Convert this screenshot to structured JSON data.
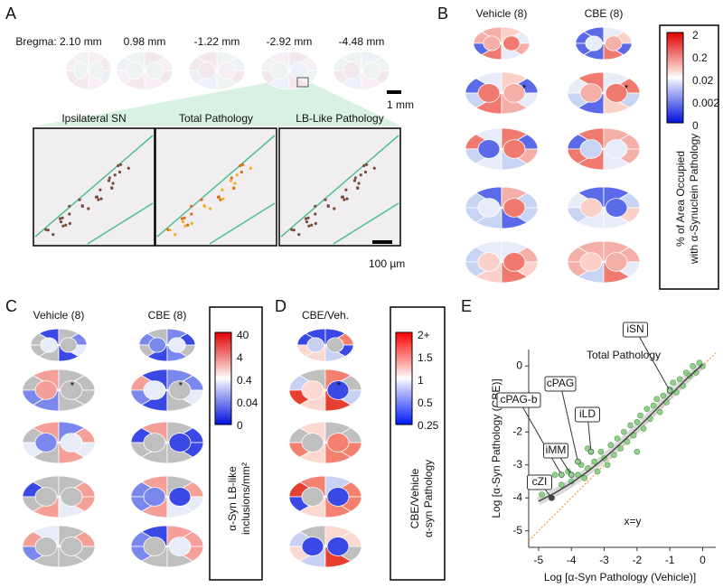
{
  "panel_a": {
    "label": "A",
    "bregma": [
      "Bregma: 2.10 mm",
      "0.98 mm",
      "-1.22 mm",
      "-2.92 mm",
      "-4.48 mm"
    ],
    "scale_bar_brain": "1 mm",
    "insets": [
      "Ipsilateral SN",
      "Total Pathology",
      "LB-Like Pathology"
    ],
    "scale_bar_inset": "100 µm"
  },
  "panel_b": {
    "label": "B",
    "columns": [
      "Vehicle (8)",
      "CBE (8)"
    ],
    "marker": "*",
    "colorbar_ticks": [
      "2",
      "0.2",
      "0.02",
      "0.002",
      "0"
    ],
    "colorbar_title": [
      "% of Area Occupied",
      "with α-Synuclein Pathology"
    ]
  },
  "panel_c": {
    "label": "C",
    "columns": [
      "Vehicle (8)",
      "CBE (8)"
    ],
    "marker": "*",
    "colorbar_ticks": [
      "40",
      "4",
      "0.4",
      "0.04",
      "0"
    ],
    "colorbar_title": [
      "α-Syn LB-like",
      "inclusions/mm²"
    ]
  },
  "panel_d": {
    "label": "D",
    "columns": [
      "CBE/Veh."
    ],
    "marker": "*",
    "colorbar_ticks": [
      "2+",
      "1.5",
      "1",
      "0.5",
      "0.25"
    ],
    "colorbar_title": [
      "CBE/Vehicle",
      "α-syn Pathology"
    ]
  },
  "chart_data": {
    "type": "scatter",
    "label": "E",
    "title": "Total Pathology",
    "x_label": "Log [α-Syn Pathology (Vehicle)]",
    "y_label": "Log [α-Syn Pathology (CBE)]",
    "xlim": [
      -5.3,
      0.4
    ],
    "ylim": [
      -5.5,
      0.5
    ],
    "xticks": [
      -5,
      -4,
      -3,
      -2,
      -1,
      0
    ],
    "yticks": [
      -5,
      -4,
      -3,
      -2,
      -1,
      0
    ],
    "color": "#8fd18a",
    "x": [
      -4.9,
      -4.5,
      -4.3,
      -4.1,
      -4.0,
      -3.8,
      -3.7,
      -3.6,
      -3.5,
      -3.3,
      -3.2,
      -3.1,
      -3.0,
      -2.9,
      -2.8,
      -2.7,
      -2.6,
      -2.5,
      -2.4,
      -2.3,
      -2.2,
      -2.1,
      -2.0,
      -1.9,
      -1.8,
      -1.7,
      -1.6,
      -1.5,
      -1.4,
      -1.3,
      -1.2,
      -1.1,
      -1.0,
      -0.9,
      -0.8,
      -0.7,
      -0.6,
      -0.5,
      -0.4,
      -0.3,
      -0.2,
      -0.1,
      0.0,
      -2.0,
      -3.5,
      -4.6
    ],
    "y": [
      -3.9,
      -3.3,
      -3.6,
      -3.2,
      -3.5,
      -3.3,
      -3.0,
      -3.4,
      -3.1,
      -2.9,
      -3.2,
      -2.6,
      -2.8,
      -3.0,
      -2.4,
      -2.7,
      -2.2,
      -2.5,
      -2.0,
      -2.3,
      -1.8,
      -2.1,
      -1.7,
      -1.5,
      -1.9,
      -1.3,
      -1.6,
      -1.2,
      -1.0,
      -1.4,
      -0.9,
      -1.1,
      -0.7,
      -0.5,
      -0.8,
      -0.4,
      -0.6,
      -0.2,
      -0.3,
      0.0,
      -0.2,
      0.1,
      0.0,
      -2.6,
      -2.5,
      -4.0
    ],
    "fit": {
      "color": "#444444",
      "x": [
        -5,
        -4.5,
        -4,
        -3.5,
        -3,
        -2.5,
        -2,
        -1.5,
        -1,
        -0.5,
        0
      ],
      "y": [
        -4.1,
        -3.85,
        -3.55,
        -3.2,
        -2.8,
        -2.35,
        -1.9,
        -1.4,
        -0.9,
        -0.4,
        0.05
      ]
    },
    "identity_label": "x=y",
    "identity_color": "#f0a030",
    "annotations": [
      {
        "text": "iSN",
        "x": -1.0,
        "y": -0.75
      },
      {
        "text": "cPAG",
        "x": -3.8,
        "y": -2.9
      },
      {
        "text": "cPAG-b",
        "x": -4.3,
        "y": -3.3
      },
      {
        "text": "iLD",
        "x": -3.4,
        "y": -2.6
      },
      {
        "text": "iMM",
        "x": -4.0,
        "y": -3.3
      },
      {
        "text": "cZI",
        "x": -4.6,
        "y": -4.0
      }
    ]
  }
}
